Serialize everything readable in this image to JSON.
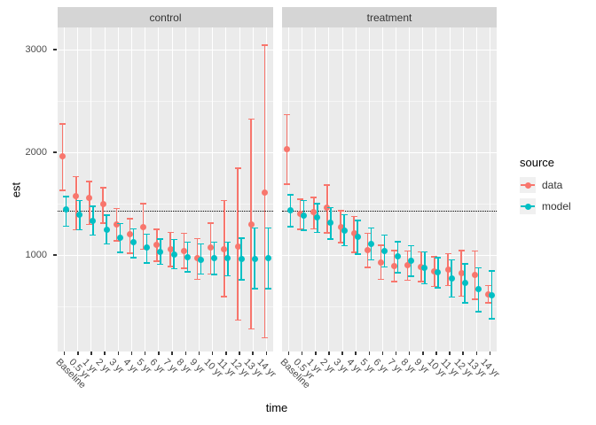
{
  "axes": {
    "y_label": "est",
    "x_label": "time",
    "y_tick_labels": [
      "3000",
      "2000",
      "1000"
    ]
  },
  "legend": {
    "title": "source",
    "entries": [
      {
        "label": "data",
        "color": "#F8766D"
      },
      {
        "label": "model",
        "color": "#00BFC4"
      }
    ]
  },
  "chart_data": {
    "type": "scatter",
    "subtype": "pointrange-with-errorbars",
    "title": "",
    "xlabel": "time",
    "ylabel": "est",
    "ylim": [
      50,
      3210
    ],
    "yticks": [
      1000,
      2000,
      3000
    ],
    "yticks_minor": [
      500,
      1500,
      2500
    ],
    "grid": "on",
    "legend_title": "source",
    "legend_position": "right",
    "reference_hline": 1430,
    "categories": [
      "Baseline",
      "0.5 yr",
      "1 yr",
      "2 yr",
      "3 yr",
      "4 yr",
      "5 yr",
      "6 yr",
      "7 yr",
      "8 yr",
      "9 yr",
      "10 yr",
      "11 yr",
      "12 yr",
      "13 yr",
      "14 yr"
    ],
    "facets": [
      {
        "name": "control",
        "series": [
          {
            "name": "data",
            "color": "#F8766D",
            "est": [
              1955,
              1570,
              1555,
              1490,
              1295,
              1195,
              1265,
              1095,
              1050,
              1035,
              965,
              1065,
              1055,
              1080,
              1295,
              1600
            ],
            "lo": [
              1625,
              1240,
              1295,
              1305,
              1135,
              1015,
              1050,
              935,
              885,
              865,
              760,
              810,
              590,
              360,
              275,
              190
            ],
            "hi": [
              2270,
              1760,
              1710,
              1650,
              1450,
              1350,
              1495,
              1245,
              1215,
              1205,
              1155,
              1305,
              1525,
              1840,
              2320,
              3040
            ]
          },
          {
            "name": "model",
            "color": "#00BFC4",
            "est": [
              1440,
              1390,
              1330,
              1245,
              1160,
              1120,
              1070,
              1025,
              1000,
              970,
              950,
              965,
              965,
              955,
              955,
              965
            ],
            "lo": [
              1275,
              1240,
              1190,
              1105,
              1020,
              970,
              920,
              905,
              860,
              830,
              810,
              805,
              795,
              755,
              670,
              670
            ],
            "hi": [
              1565,
              1525,
              1470,
              1385,
              1300,
              1250,
              1200,
              1150,
              1145,
              1120,
              1105,
              1120,
              1120,
              1160,
              1260,
              1260
            ]
          }
        ]
      },
      {
        "name": "treatment",
        "series": [
          {
            "name": "data",
            "color": "#F8766D",
            "est": [
              2025,
              1395,
              1410,
              1455,
              1270,
              1205,
              1040,
              925,
              890,
              895,
              880,
              840,
              855,
              815,
              800,
              612
            ],
            "lo": [
              1685,
              1245,
              1250,
              1210,
              1115,
              1020,
              875,
              760,
              735,
              750,
              735,
              690,
              700,
              595,
              565,
              530
            ],
            "hi": [
              2360,
              1540,
              1555,
              1675,
              1425,
              1370,
              1205,
              1090,
              1040,
              1035,
              1025,
              980,
              1010,
              1040,
              1035,
              700
            ]
          },
          {
            "name": "model",
            "color": "#00BFC4",
            "est": [
              1433,
              1380,
              1358,
              1310,
              1237,
              1170,
              1105,
              1035,
              980,
              937,
              870,
              825,
              770,
              727,
              660,
              605
            ],
            "lo": [
              1272,
              1235,
              1215,
              1150,
              1085,
              1005,
              950,
              880,
              825,
              790,
              715,
              675,
              585,
              530,
              445,
              375
            ],
            "hi": [
              1582,
              1525,
              1495,
              1455,
              1390,
              1330,
              1260,
              1190,
              1125,
              1085,
              1025,
              970,
              950,
              910,
              870,
              840
            ]
          }
        ]
      }
    ]
  },
  "style": {
    "panel_bg": "#EBEBEB",
    "strip_bg": "#D5D5D5",
    "grid_color": "#FFFFFF",
    "axis_text_color": "#4D4D4D"
  }
}
